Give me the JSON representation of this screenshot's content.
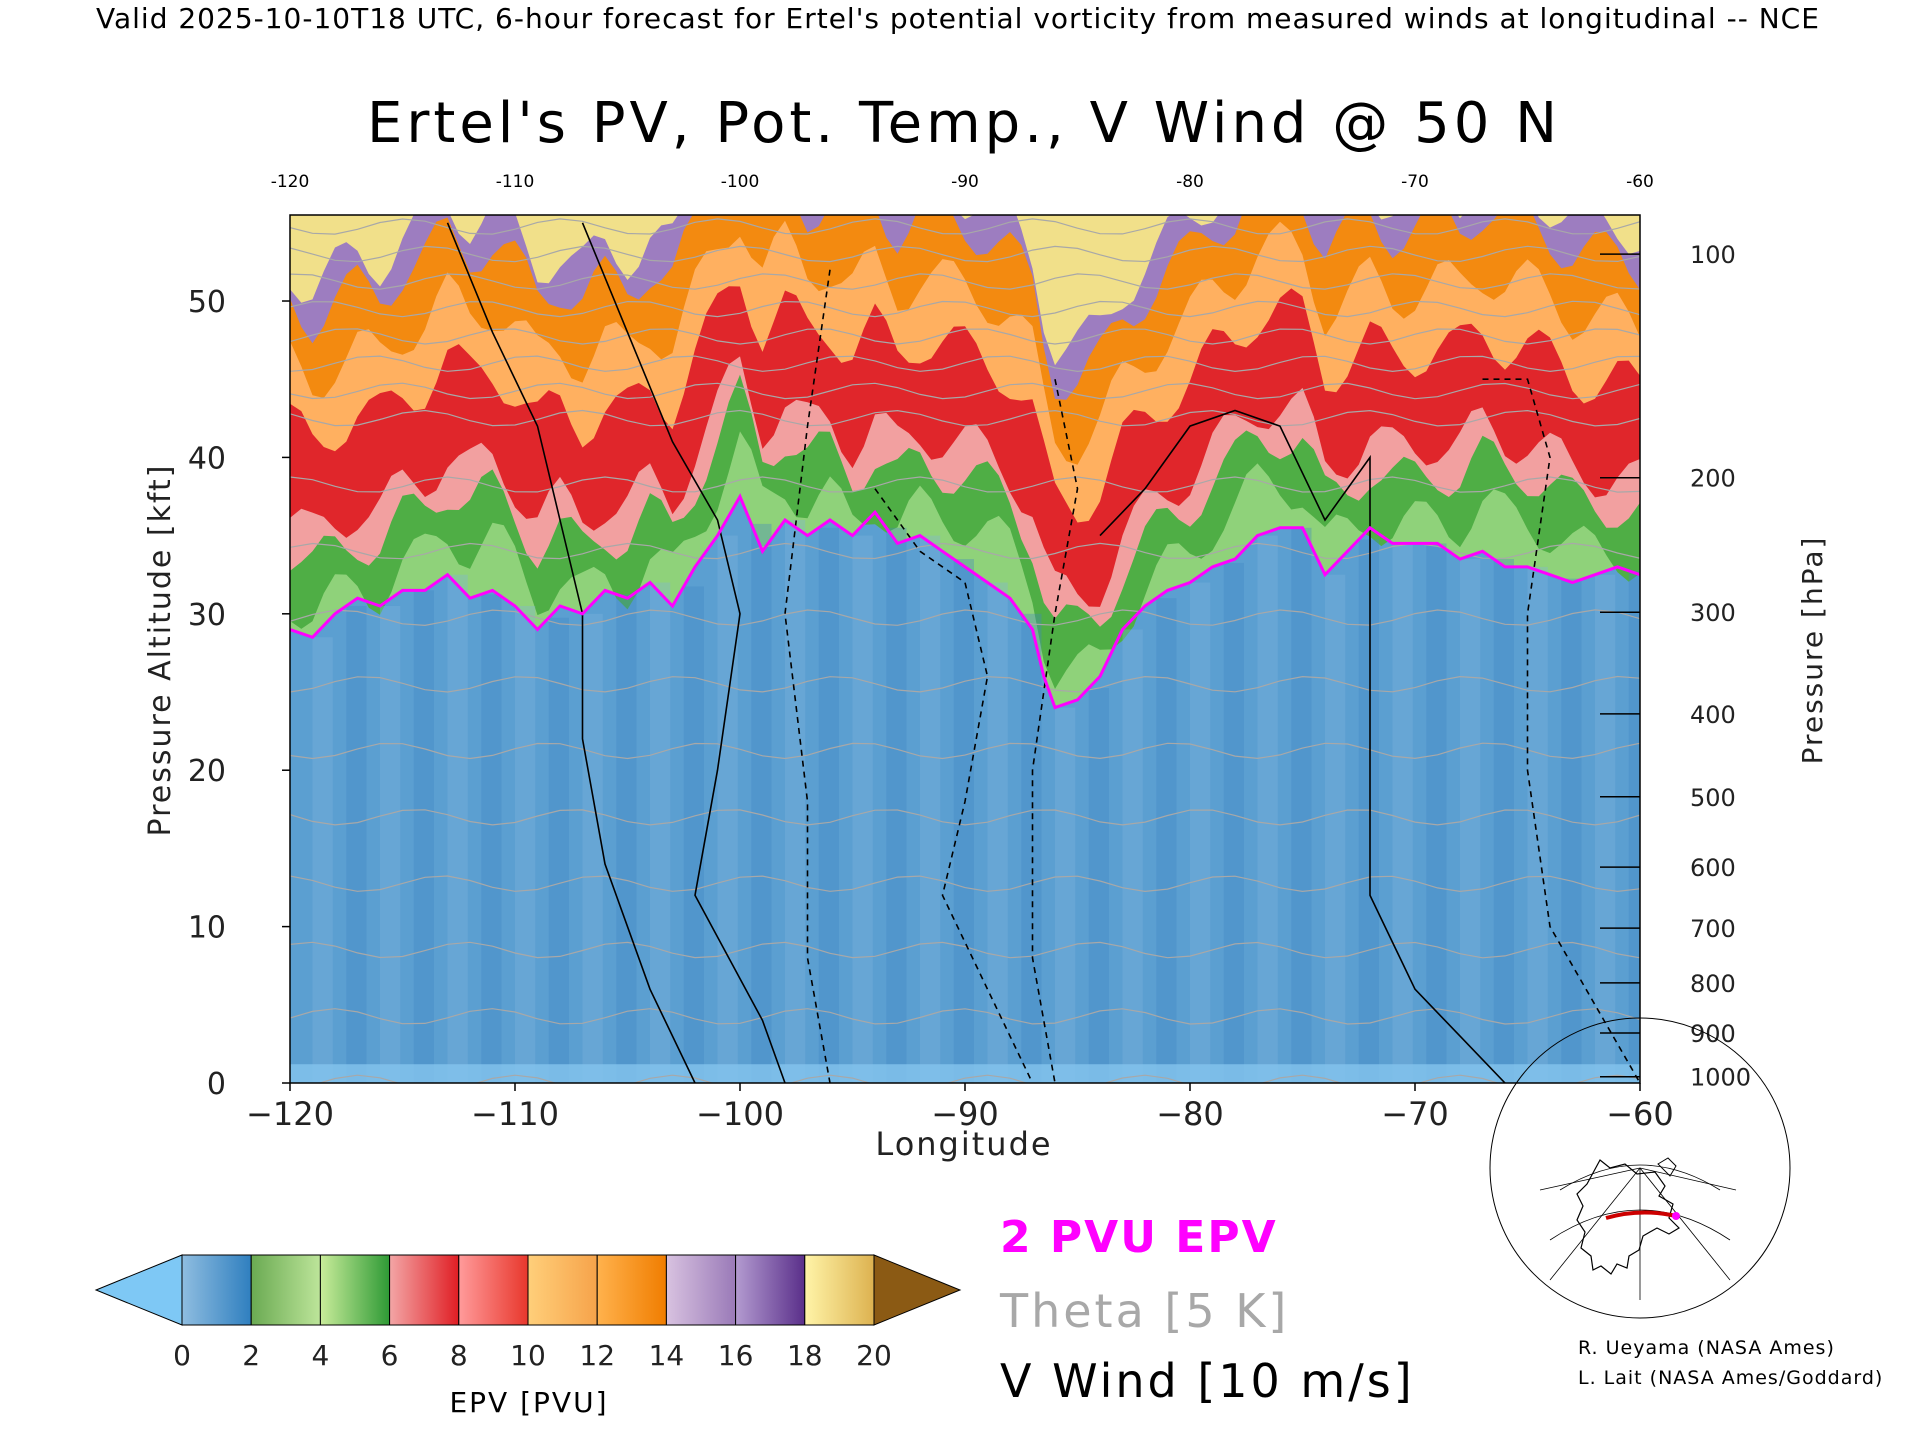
{
  "header": {
    "valid_line": "Valid 2025-10-10T18 UTC, 6-hour forecast for Ertel's potential vorticity from measured winds at longitudinal -- NCE"
  },
  "legend": {
    "pv_label": "2 PVU EPV",
    "theta_label": "Theta [5 K]",
    "wind_label": "V Wind [10 m/s]",
    "pv_color": "#ff00ff",
    "theta_color": "#a8a8a8"
  },
  "credits": {
    "line1": "R. Ueyama (NASA Ames)",
    "line2": "L. Lait (NASA Ames/Goddard)"
  },
  "inset_map": {
    "icon": "polar-map-icon",
    "cross_section_latitude": 50,
    "line_color": "#cc0000"
  },
  "chart_data": {
    "type": "heatmap",
    "title": "Ertel's PV, Pot. Temp., V Wind @ 50 N",
    "xlabel": "Longitude",
    "ylabel": "Pressure Altitude [kft]",
    "y2label": "Pressure [hPa]",
    "xlim": [
      -120,
      -60
    ],
    "ylim": [
      0,
      55.5
    ],
    "x_ticks": [
      -120,
      -110,
      -100,
      -90,
      -80,
      -70,
      -60
    ],
    "x_tick_labels": [
      "−120",
      "−110",
      "−100",
      "−90",
      "−80",
      "−70",
      "−60"
    ],
    "top_ticks": [
      -120,
      -110,
      -100,
      -90,
      -80,
      -70,
      -60
    ],
    "top_tick_labels": [
      "-120",
      "-110",
      "-100",
      "-90",
      "-80",
      "-70",
      "-60"
    ],
    "y_ticks": [
      0,
      10,
      20,
      30,
      40,
      50
    ],
    "pressure_ticks": [
      {
        "label": "100",
        "kft": 53.0
      },
      {
        "label": "200",
        "kft": 38.7
      },
      {
        "label": "300",
        "kft": 30.1
      },
      {
        "label": "400",
        "kft": 23.6
      },
      {
        "label": "500",
        "kft": 18.3
      },
      {
        "label": "600",
        "kft": 13.8
      },
      {
        "label": "700",
        "kft": 9.9
      },
      {
        "label": "800",
        "kft": 6.4
      },
      {
        "label": "900",
        "kft": 3.2
      },
      {
        "label": "1000",
        "kft": 0.4
      }
    ],
    "colorbar": {
      "label": "EPV [PVU]",
      "ticks": [
        "0",
        "2",
        "4",
        "6",
        "8",
        "10",
        "12",
        "14",
        "16",
        "18",
        "20"
      ],
      "bins": [
        [
          "#8fbde0",
          "#2f7fbf"
        ],
        [
          "#6aaa52",
          "#bde59a"
        ],
        [
          "#c9ec9a",
          "#2e9a35"
        ],
        [
          "#f3a6a6",
          "#e01e24"
        ],
        [
          "#ff9b9b",
          "#e8372c"
        ],
        [
          "#ffcf7a",
          "#f6a34a"
        ],
        [
          "#ffb24d",
          "#f07d00"
        ],
        [
          "#d8c2e0",
          "#9a7ab8"
        ],
        [
          "#b39bd0",
          "#5a2f8a"
        ],
        [
          "#fff4a8",
          "#ddb250"
        ]
      ],
      "under_color": "#7ec8f5",
      "over_color": "#8b5a14"
    },
    "tropopause_2pvu_kft": {
      "x": [
        -120,
        -119,
        -118,
        -117,
        -116,
        -115,
        -114,
        -113,
        -112,
        -111,
        -110,
        -109,
        -108,
        -107,
        -106,
        -105,
        -104,
        -103,
        -102,
        -101,
        -100,
        -99,
        -98,
        -97,
        -96,
        -95,
        -94,
        -93,
        -92,
        -91,
        -90,
        -89,
        -88,
        -87,
        -86.5,
        -86,
        -85,
        -84,
        -83,
        -82,
        -81,
        -80,
        -79,
        -78,
        -77,
        -76,
        -75,
        -74,
        -73,
        -72,
        -71,
        -70,
        -69,
        -68,
        -67,
        -66,
        -65,
        -64,
        -63,
        -62,
        -61,
        -60
      ],
      "y": [
        29,
        28.5,
        30,
        31,
        30.5,
        31.5,
        31.5,
        32.5,
        31,
        31.5,
        30.5,
        29,
        30.5,
        30,
        31.5,
        31,
        32,
        30.5,
        33,
        35,
        37.5,
        34,
        36,
        35,
        36,
        35,
        36.5,
        34.5,
        35,
        34,
        33,
        32,
        31,
        29,
        26,
        24,
        24.5,
        26,
        29,
        30.5,
        31.5,
        32,
        33,
        33.5,
        35,
        35.5,
        35.5,
        32.5,
        34,
        35.5,
        34.5,
        34.5,
        34.5,
        33.5,
        34,
        33,
        33,
        32.5,
        32,
        32.5,
        33,
        32.5
      ]
    },
    "theta_levels_K": [
      280,
      285,
      290,
      295,
      300,
      305,
      310,
      315,
      320,
      325,
      330,
      335,
      340,
      345,
      350,
      355,
      360,
      365,
      370,
      375,
      380,
      385,
      390,
      395,
      400,
      405,
      410
    ],
    "v_wind_contours_mps": [
      -30,
      -20,
      -10,
      0,
      10,
      20,
      30
    ]
  }
}
